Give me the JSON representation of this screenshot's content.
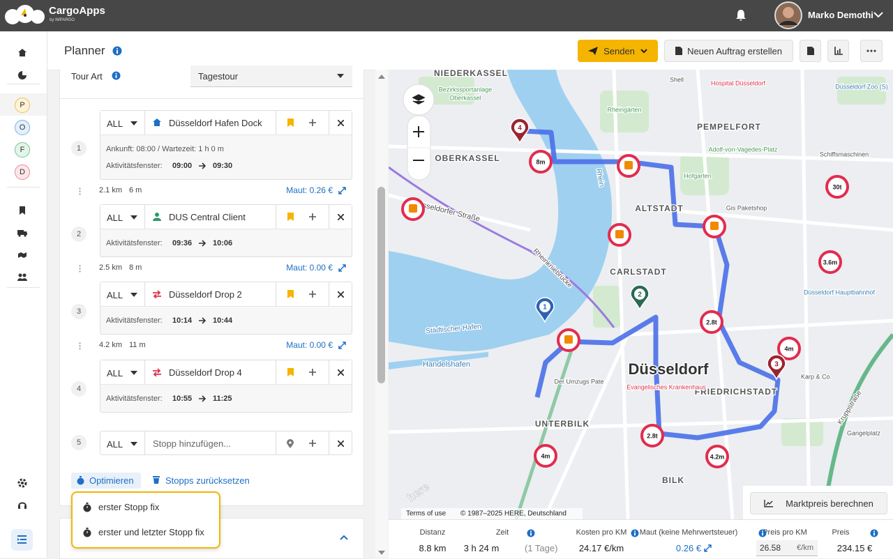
{
  "app": {
    "name": "CargoApps",
    "byline": "by IMPARGO",
    "user": "Marko Demothi"
  },
  "nav": {
    "letters": [
      "P",
      "O",
      "F",
      "D"
    ]
  },
  "header": {
    "title": "Planner",
    "send": "Senden",
    "new_order": "Neuen Auftrag erstellen"
  },
  "tour": {
    "label": "Tour Art",
    "value": "Tagestour"
  },
  "stops": [
    {
      "number": 1,
      "filter": "ALL",
      "name": "Düsseldorf Hafen Dock",
      "arrival": "Ankunft: 08:00 / Wartezeit: 1 h 0 m",
      "window_label": "Aktivitätsfenster:",
      "from": "09:00",
      "to": "09:30"
    },
    {
      "number": 2,
      "filter": "ALL",
      "name": "DUS Central Client",
      "window_label": "Aktivitätsfenster:",
      "from": "09:36",
      "to": "10:06"
    },
    {
      "number": 3,
      "filter": "ALL",
      "name": "Düsseldorf Drop 2",
      "window_label": "Aktivitätsfenster:",
      "from": "10:14",
      "to": "10:44"
    },
    {
      "number": 4,
      "filter": "ALL",
      "name": "Düsseldorf Drop 4",
      "window_label": "Aktivitätsfenster:",
      "from": "10:55",
      "to": "11:25"
    }
  ],
  "legs": [
    {
      "distance": "2.1 km",
      "time": "6 m",
      "toll": "Maut: 0.26 €"
    },
    {
      "distance": "2.5 km",
      "time": "8 m",
      "toll": "Maut: 0.00 €"
    },
    {
      "distance": "4.2 km",
      "time": "11 m",
      "toll": "Maut: 0.00 €"
    }
  ],
  "new_stop": {
    "number": 5,
    "filter": "ALL",
    "placeholder": "Stopp hinzufügen..."
  },
  "actions": {
    "optimize": "Optimieren",
    "reset": "Stopps zurücksetzen"
  },
  "optimize_menu": [
    "erster Stopp fix",
    "erster und letzter Stopp fix"
  ],
  "map": {
    "labels": [
      "NIEDERKASSEL",
      "Bezirkssportanlage",
      "Oberkassel",
      "OBERKASSEL",
      "Rheingärten",
      "PEMPELFORT",
      "Düsseldorfer Straße",
      "ALTSTADT",
      "Hofgarten",
      "CARLSTADT",
      "Rhein",
      "Rheinkniebrücke",
      "Städtischer Hafen",
      "Handelshafen",
      "Düsseldorf",
      "FRIEDRICHSTADT",
      "UNTERBILK",
      "BILK",
      "Düsseldorf Hauptbahnhof",
      "Gangelplatz",
      "Karp & Co.",
      "Gis Paketshop",
      "Evangelisches Krankenhaus",
      "Der Umzugs Pate",
      "Schiffsmaschinen",
      "Adolf-von-Vagedes-Platz",
      "Düsseldorf Zoo (S)",
      "Shell",
      "Hospital Düsseldorf",
      "Kruppstraße"
    ],
    "restrictions": [
      "8m",
      "30t",
      "3.6m",
      "2.8t",
      "4m",
      "2.8t",
      "4.2m",
      "4m"
    ],
    "pins": [
      1,
      2,
      3,
      4
    ],
    "logo": "here",
    "terms": "Terms of use",
    "copyright": "© 1987–2025 HERE, Deutschland"
  },
  "summary": {
    "items": [
      {
        "label": "Distanz",
        "value": "8.8 km"
      },
      {
        "label": "Zeit",
        "value": "3 h 24 m",
        "note": "(1 Tage)"
      },
      {
        "label": "Kosten pro KM",
        "value": "24.17 €/km"
      },
      {
        "label": "Maut (keine Mehrwertsteuer)",
        "value": "0.26 €"
      },
      {
        "label": "Preis pro KM",
        "value": "26.58",
        "unit": "€/km"
      },
      {
        "label": "Preis",
        "value": "234.15 €"
      }
    ],
    "market_button": "Marktpreis berechnen"
  }
}
